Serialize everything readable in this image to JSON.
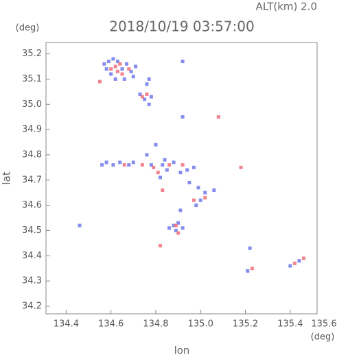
{
  "chart_data": {
    "type": "scatter",
    "title": "2018/10/19 03:57:00",
    "subtitle": "ALT(km)  2.0",
    "x_label": "lon",
    "x_unit": "(deg)",
    "y_label": "lat",
    "y_unit": "(deg)",
    "xlim": [
      134.31,
      135.52
    ],
    "ylim": [
      34.17,
      35.245
    ],
    "xticks": [
      134.4,
      134.6,
      134.8,
      {
        "value": 135.0,
        "label": "135.0"
      },
      135.2,
      135.4,
      135.6
    ],
    "yticks": [
      34.2,
      34.3,
      34.4,
      34.5,
      34.6,
      34.7,
      34.8,
      34.9,
      {
        "value": 35.0,
        "label": "35.0"
      },
      35.1,
      35.2
    ],
    "series": [
      {
        "color": "#6f78ea",
        "x": [
          134.57,
          134.59,
          134.61,
          134.63,
          134.65,
          134.67,
          134.69,
          134.71,
          134.6,
          134.62,
          134.66,
          134.7,
          134.58,
          134.73,
          134.75,
          134.77,
          134.78,
          134.77,
          134.76,
          134.92,
          134.92,
          134.58,
          134.61,
          134.64,
          134.7,
          134.76,
          134.8,
          134.78,
          134.83,
          134.85,
          134.88,
          134.94,
          134.97,
          134.91,
          134.95,
          134.99,
          135.02,
          135.0,
          134.98,
          135.06,
          134.82,
          134.84,
          134.68,
          134.86,
          134.88,
          134.9,
          134.92,
          134.89,
          134.91,
          134.46,
          135.21,
          135.44,
          135.4,
          135.22,
          134.56
        ],
        "y": [
          35.16,
          35.17,
          35.18,
          35.17,
          35.14,
          35.16,
          35.13,
          35.15,
          35.12,
          35.1,
          35.1,
          35.11,
          35.14,
          35.04,
          35.02,
          35.0,
          35.03,
          35.1,
          35.08,
          34.95,
          35.17,
          34.77,
          34.76,
          34.77,
          34.77,
          34.8,
          34.84,
          34.76,
          34.76,
          34.74,
          34.77,
          34.74,
          34.75,
          34.73,
          34.69,
          34.67,
          34.65,
          34.62,
          34.6,
          34.66,
          34.71,
          34.78,
          34.76,
          34.51,
          34.52,
          34.53,
          34.51,
          34.5,
          34.58,
          34.52,
          34.34,
          34.38,
          34.36,
          34.43,
          34.76
        ]
      },
      {
        "color": "#ee6e7a",
        "x": [
          134.62,
          134.64,
          134.63,
          134.65,
          134.55,
          134.68,
          134.6,
          134.74,
          134.76,
          135.08,
          134.66,
          134.74,
          134.79,
          134.86,
          134.81,
          134.97,
          135.02,
          134.92,
          134.83,
          135.18,
          134.89,
          134.9,
          134.82,
          135.23,
          135.42,
          135.46
        ],
        "y": [
          35.15,
          35.16,
          35.13,
          35.12,
          35.09,
          35.14,
          35.14,
          35.03,
          35.04,
          34.95,
          34.76,
          34.76,
          34.75,
          34.76,
          34.73,
          34.62,
          34.63,
          34.76,
          34.66,
          34.75,
          34.52,
          34.49,
          34.44,
          34.35,
          34.37,
          34.39
        ]
      }
    ]
  }
}
